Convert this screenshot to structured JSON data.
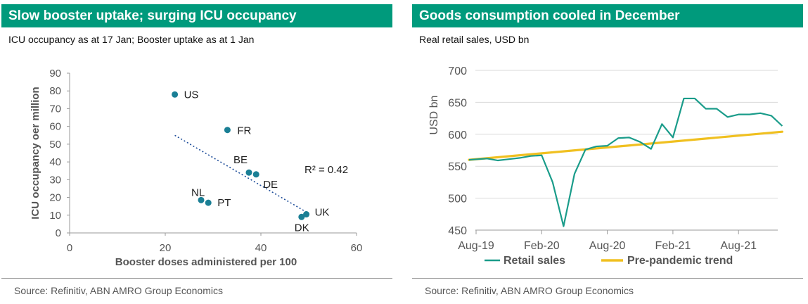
{
  "left": {
    "title": "Slow booster uptake; surging ICU occupancy",
    "subtitle": "ICU occupancy as at 17 Jan; Booster uptake as at 1 Jan",
    "source": "Source: Refinitiv, ABN AMRO Group Economics"
  },
  "right": {
    "title": "Goods consumption cooled in December",
    "subtitle": "Real retail sales, USD bn",
    "source": "Source: Refinitiv, ABN AMRO Group Economics"
  },
  "chart_data": [
    {
      "type": "scatter",
      "xlabel": "Booster doses administered per 100",
      "ylabel": "ICU occupancy oer million",
      "xlim": [
        0,
        60
      ],
      "ylim": [
        0,
        90
      ],
      "xticks": [
        0,
        20,
        40,
        60
      ],
      "yticks": [
        0,
        10,
        20,
        30,
        40,
        50,
        60,
        70,
        80,
        90
      ],
      "grid": false,
      "points": [
        {
          "label": "US",
          "x": 22,
          "y": 78
        },
        {
          "label": "FR",
          "x": 33,
          "y": 58
        },
        {
          "label": "BE",
          "x": 37.5,
          "y": 34
        },
        {
          "label": "DE",
          "x": 39,
          "y": 33
        },
        {
          "label": "NL",
          "x": 27.5,
          "y": 18.5
        },
        {
          "label": "PT",
          "x": 29,
          "y": 17
        },
        {
          "label": "UK",
          "x": 49.5,
          "y": 10.5
        },
        {
          "label": "DK",
          "x": 48.5,
          "y": 9
        }
      ],
      "trendline": {
        "x": [
          22,
          50
        ],
        "y": [
          55,
          11
        ]
      },
      "annotation": "R² = 0.42",
      "color": "#1a7f95"
    },
    {
      "type": "line",
      "ylabel": "USD bn",
      "ylim": [
        450,
        700
      ],
      "yticks": [
        450,
        500,
        550,
        600,
        650,
        700
      ],
      "xticks": [
        "Aug-19",
        "Feb-20",
        "Aug-20",
        "Feb-21",
        "Aug-21"
      ],
      "grid": true,
      "legend_position": "bottom",
      "series": [
        {
          "name": "Retail sales",
          "color": "#1a9c8a",
          "x": [
            "Aug-19",
            "Sep-19",
            "Oct-19",
            "Nov-19",
            "Dec-19",
            "Jan-20",
            "Feb-20",
            "Mar-20",
            "Apr-20",
            "May-20",
            "Jun-20",
            "Jul-20",
            "Aug-20",
            "Sep-20",
            "Oct-20",
            "Nov-20",
            "Dec-20",
            "Jan-21",
            "Feb-21",
            "Mar-21",
            "Apr-21",
            "May-21",
            "Jun-21",
            "Jul-21",
            "Aug-21",
            "Sep-21",
            "Oct-21",
            "Nov-21",
            "Dec-21"
          ],
          "y": [
            560,
            562,
            559,
            561,
            563,
            566,
            567,
            525,
            456,
            538,
            576,
            581,
            582,
            594,
            595,
            588,
            577,
            616,
            595,
            656,
            656,
            640,
            640,
            627,
            631,
            631,
            633,
            629,
            613
          ]
        },
        {
          "name": "Pre-pandemic trend",
          "color": "#f0c020",
          "x": [
            "Aug-19",
            "Dec-21"
          ],
          "y": [
            560,
            604
          ]
        }
      ]
    }
  ]
}
